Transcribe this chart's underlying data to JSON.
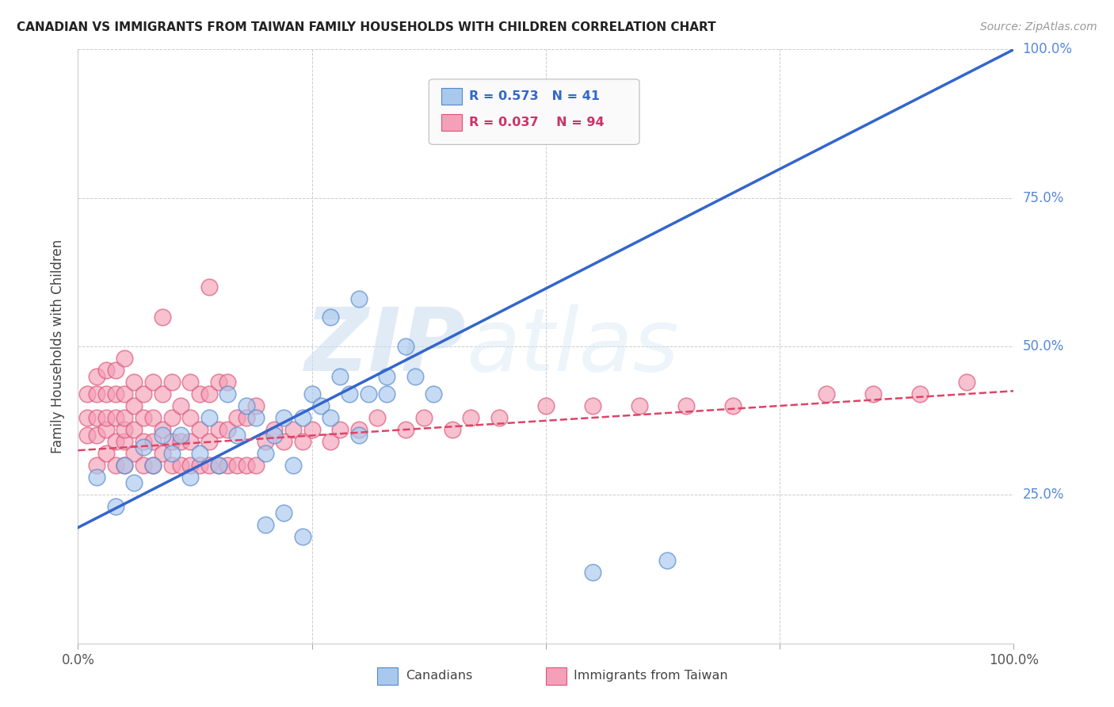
{
  "title": "CANADIAN VS IMMIGRANTS FROM TAIWAN FAMILY HOUSEHOLDS WITH CHILDREN CORRELATION CHART",
  "source": "Source: ZipAtlas.com",
  "ylabel": "Family Households with Children",
  "watermark_zip": "ZIP",
  "watermark_atlas": "atlas",
  "xlim": [
    0,
    1
  ],
  "ylim": [
    0,
    1
  ],
  "xtick_vals": [
    0.0,
    0.25,
    0.5,
    0.75,
    1.0
  ],
  "xticklabels": [
    "0.0%",
    "",
    "",
    "",
    "100.0%"
  ],
  "ytick_vals": [
    0.0,
    0.25,
    0.5,
    0.75,
    1.0
  ],
  "yticklabels_right": [
    "",
    "25.0%",
    "50.0%",
    "75.0%",
    "100.0%"
  ],
  "legend_r_canadian": "R = 0.573",
  "legend_n_canadian": "N = 41",
  "legend_r_taiwan": "R = 0.037",
  "legend_n_taiwan": "N = 94",
  "canadian_fill": "#A8C8EE",
  "canadian_edge": "#5588CC",
  "taiwan_fill": "#F4A0B8",
  "taiwan_edge": "#DD5577",
  "canadian_line_color": "#3366CC",
  "taiwan_line_color": "#DD4466",
  "background_color": "#FFFFFF",
  "grid_color": "#CCCCCC",
  "ca_line_y0": 0.195,
  "ca_line_y1": 1.0,
  "tw_line_y0": 0.325,
  "tw_line_y1": 0.425,
  "ca_x": [
    0.02,
    0.04,
    0.05,
    0.06,
    0.07,
    0.08,
    0.09,
    0.1,
    0.11,
    0.12,
    0.13,
    0.14,
    0.15,
    0.16,
    0.17,
    0.18,
    0.19,
    0.2,
    0.21,
    0.22,
    0.23,
    0.24,
    0.25,
    0.26,
    0.27,
    0.28,
    0.29,
    0.3,
    0.31,
    0.33,
    0.35,
    0.27,
    0.3,
    0.33,
    0.36,
    0.22,
    0.24,
    0.2,
    0.55,
    0.63,
    0.38
  ],
  "ca_y": [
    0.28,
    0.23,
    0.3,
    0.27,
    0.33,
    0.3,
    0.35,
    0.32,
    0.35,
    0.28,
    0.32,
    0.38,
    0.3,
    0.42,
    0.35,
    0.4,
    0.38,
    0.32,
    0.35,
    0.38,
    0.3,
    0.38,
    0.42,
    0.4,
    0.38,
    0.45,
    0.42,
    0.35,
    0.42,
    0.45,
    0.5,
    0.55,
    0.58,
    0.42,
    0.45,
    0.22,
    0.18,
    0.2,
    0.12,
    0.14,
    0.42
  ],
  "tw_x": [
    0.01,
    0.01,
    0.01,
    0.02,
    0.02,
    0.02,
    0.02,
    0.02,
    0.03,
    0.03,
    0.03,
    0.03,
    0.03,
    0.04,
    0.04,
    0.04,
    0.04,
    0.04,
    0.05,
    0.05,
    0.05,
    0.05,
    0.05,
    0.05,
    0.06,
    0.06,
    0.06,
    0.06,
    0.07,
    0.07,
    0.07,
    0.07,
    0.08,
    0.08,
    0.08,
    0.08,
    0.09,
    0.09,
    0.09,
    0.1,
    0.1,
    0.1,
    0.1,
    0.11,
    0.11,
    0.11,
    0.12,
    0.12,
    0.12,
    0.12,
    0.13,
    0.13,
    0.13,
    0.14,
    0.14,
    0.14,
    0.15,
    0.15,
    0.15,
    0.16,
    0.16,
    0.16,
    0.17,
    0.17,
    0.18,
    0.18,
    0.19,
    0.19,
    0.2,
    0.21,
    0.22,
    0.23,
    0.24,
    0.25,
    0.27,
    0.28,
    0.3,
    0.32,
    0.35,
    0.37,
    0.4,
    0.42,
    0.45,
    0.5,
    0.55,
    0.6,
    0.65,
    0.7,
    0.8,
    0.85,
    0.9,
    0.95,
    0.14,
    0.09
  ],
  "tw_y": [
    0.35,
    0.38,
    0.42,
    0.3,
    0.35,
    0.38,
    0.42,
    0.45,
    0.32,
    0.36,
    0.38,
    0.42,
    0.46,
    0.3,
    0.34,
    0.38,
    0.42,
    0.46,
    0.3,
    0.34,
    0.36,
    0.38,
    0.42,
    0.48,
    0.32,
    0.36,
    0.4,
    0.44,
    0.3,
    0.34,
    0.38,
    0.42,
    0.3,
    0.34,
    0.38,
    0.44,
    0.32,
    0.36,
    0.42,
    0.3,
    0.34,
    0.38,
    0.44,
    0.3,
    0.34,
    0.4,
    0.3,
    0.34,
    0.38,
    0.44,
    0.3,
    0.36,
    0.42,
    0.3,
    0.34,
    0.42,
    0.3,
    0.36,
    0.44,
    0.3,
    0.36,
    0.44,
    0.3,
    0.38,
    0.3,
    0.38,
    0.3,
    0.4,
    0.34,
    0.36,
    0.34,
    0.36,
    0.34,
    0.36,
    0.34,
    0.36,
    0.36,
    0.38,
    0.36,
    0.38,
    0.36,
    0.38,
    0.38,
    0.4,
    0.4,
    0.4,
    0.4,
    0.4,
    0.42,
    0.42,
    0.42,
    0.44,
    0.6,
    0.55
  ]
}
